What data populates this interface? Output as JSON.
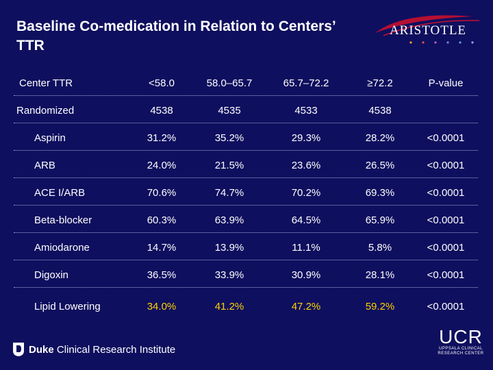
{
  "title": "Baseline Co-medication in Relation to Centers’ TTR",
  "aristotle_logo_text": "ARISTOTLE",
  "table": {
    "header": [
      "Center TTR",
      "<58.0",
      "58.0–65.7",
      "65.7–72.2",
      "≥72.2",
      "P-value"
    ],
    "randomized": {
      "label": "Randomized",
      "values": [
        "4538",
        "4535",
        "4533",
        "4538",
        ""
      ]
    },
    "rows": [
      {
        "label": "Aspirin",
        "values": [
          "31.2%",
          "35.2%",
          "29.3%",
          "28.2%",
          "<0.0001"
        ]
      },
      {
        "label": "ARB",
        "values": [
          "24.0%",
          "21.5%",
          "23.6%",
          "26.5%",
          "<0.0001"
        ]
      },
      {
        "label": "ACE I/ARB",
        "values": [
          "70.6%",
          "74.7%",
          "70.2%",
          "69.3%",
          "<0.0001"
        ]
      },
      {
        "label": "Beta-blocker",
        "values": [
          "60.3%",
          "63.9%",
          "64.5%",
          "65.9%",
          "<0.0001"
        ]
      },
      {
        "label": "Amiodarone",
        "values": [
          "14.7%",
          "13.9%",
          "11.1%",
          "5.8%",
          "<0.0001"
        ]
      },
      {
        "label": "Digoxin",
        "values": [
          "36.5%",
          "33.9%",
          "30.9%",
          "28.1%",
          "<0.0001"
        ]
      },
      {
        "label": "Lipid Lowering",
        "values": [
          "34.0%",
          "41.2%",
          "47.2%",
          "59.2%",
          "<0.0001"
        ]
      }
    ]
  },
  "footer": {
    "duke_bold": "Duke",
    "duke_rest": " Clinical Research Institute",
    "ucr_big": "UCR",
    "ucr_line1": "UPPSALA CLINICAL",
    "ucr_line2": "RESEARCH CENTER"
  },
  "colors": {
    "background": "#0f0f5f",
    "highlight": "#ffd200",
    "logo_red": "#c8102e"
  }
}
